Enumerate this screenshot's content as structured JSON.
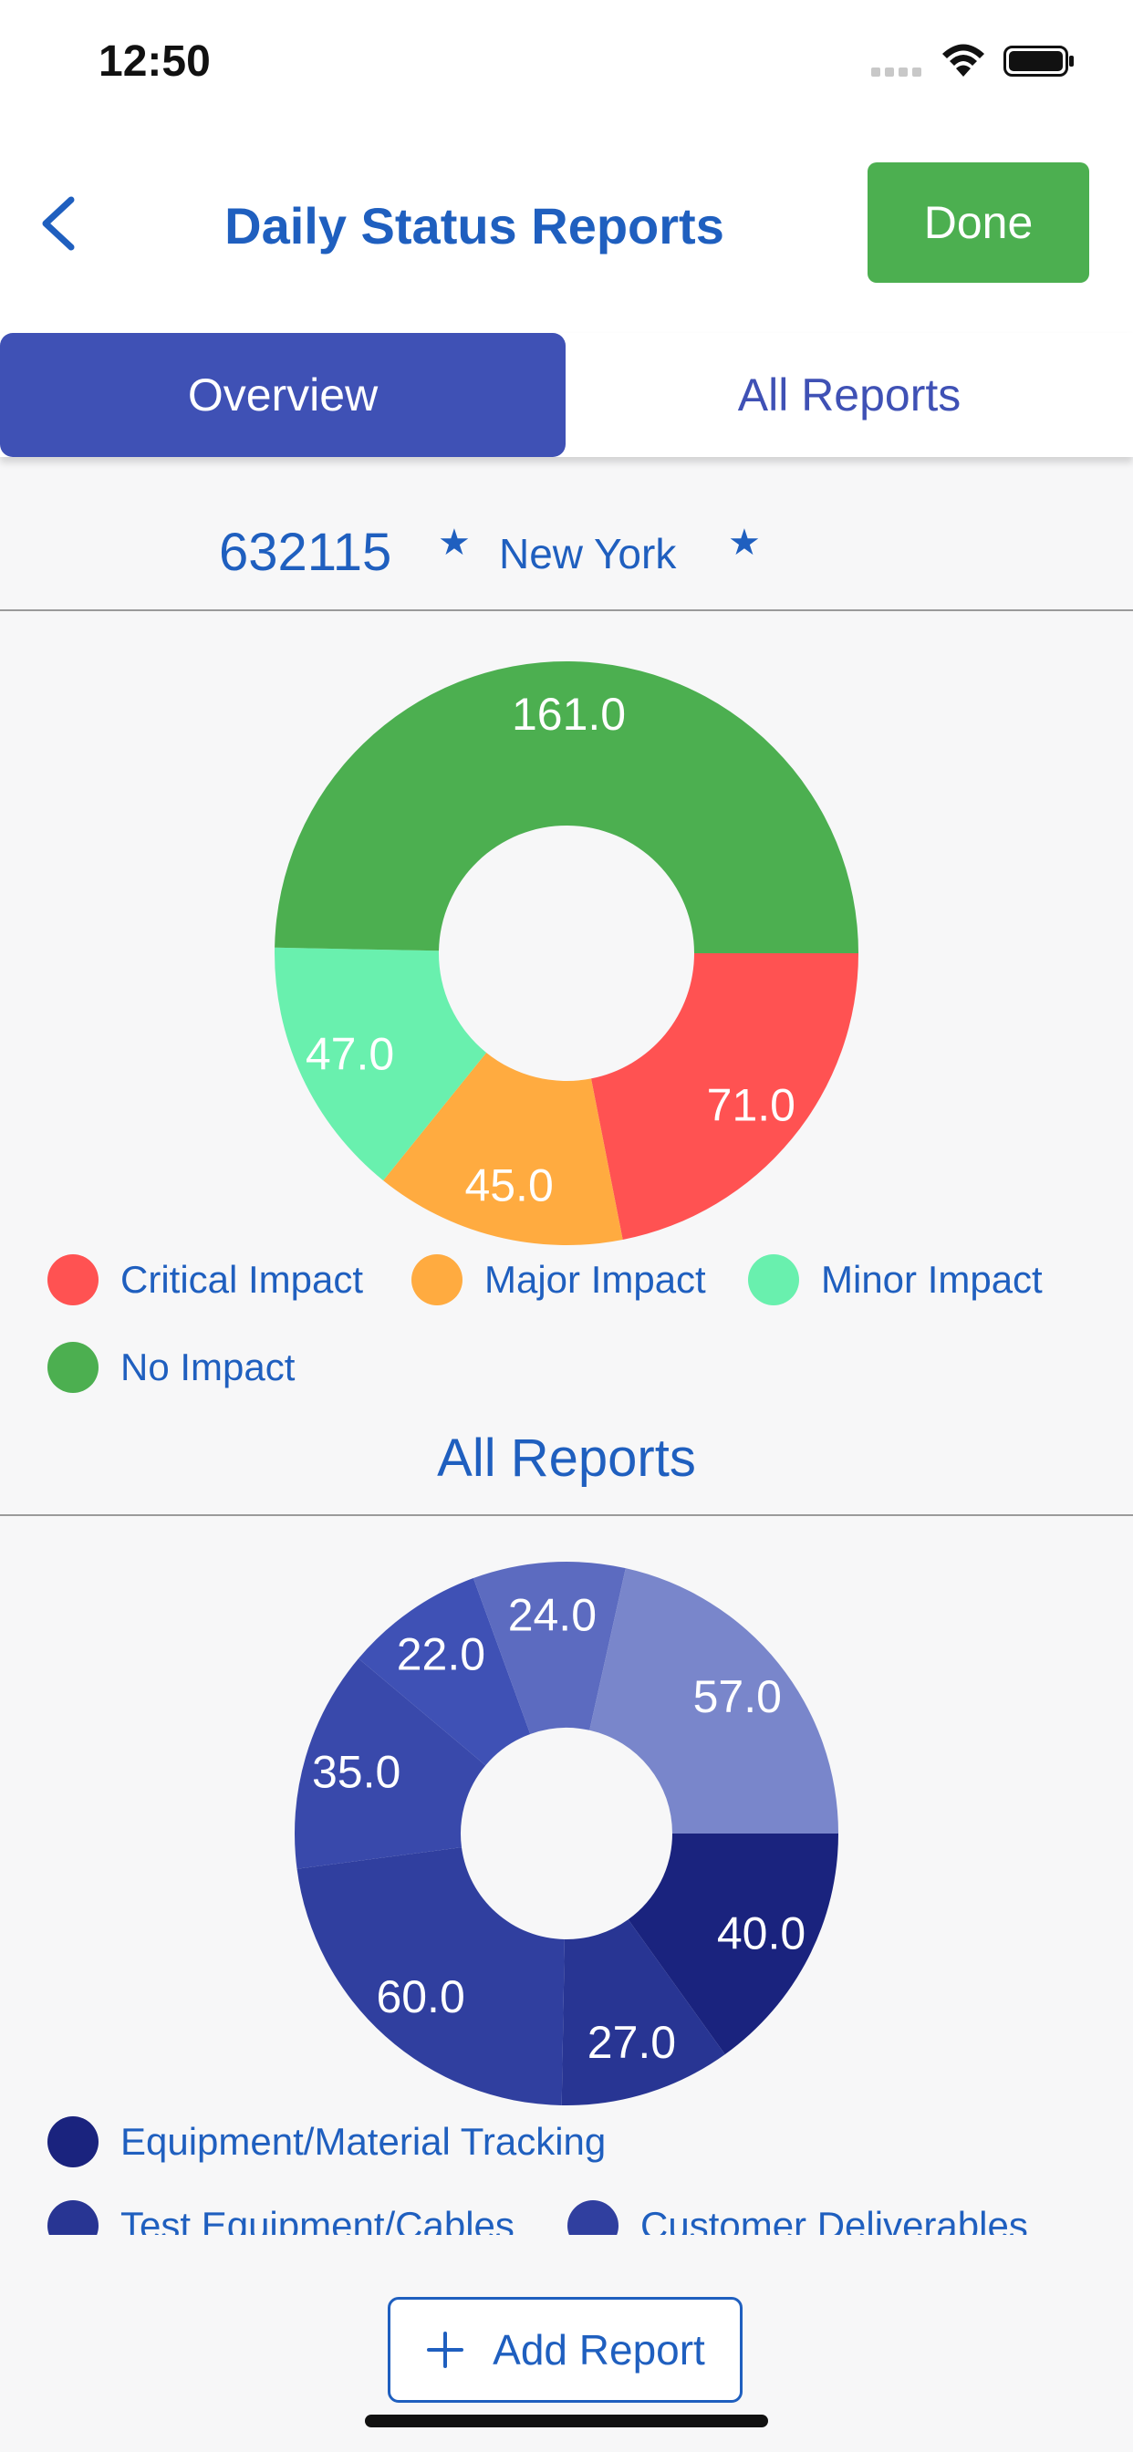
{
  "status_bar": {
    "time": "12:50"
  },
  "nav": {
    "title": "Daily Status Reports",
    "done_label": "Done"
  },
  "tabs": [
    {
      "label": "Overview",
      "active": true
    },
    {
      "label": "All Reports",
      "active": false
    }
  ],
  "site": {
    "id": "632115",
    "city": "New York",
    "star": "★"
  },
  "section_title": "All Reports",
  "add_report_label": "Add Report",
  "colors": {
    "primary": "#3f51b5",
    "text_blue": "#1f5fbf",
    "done_green": "#4caf50"
  },
  "chart_data": [
    {
      "type": "pie",
      "donut": true,
      "series": [
        {
          "label": "Critical Impact",
          "value": 71.0,
          "color": "#ff5252"
        },
        {
          "label": "Major Impact",
          "value": 45.0,
          "color": "#ffab40"
        },
        {
          "label": "Minor Impact",
          "value": 47.0,
          "color": "#69f0ae"
        },
        {
          "label": "No Impact",
          "value": 161.0,
          "color": "#4caf50"
        }
      ],
      "legend": [
        {
          "label": "Critical Impact",
          "color": "#ff5252"
        },
        {
          "label": "Major Impact",
          "color": "#ffab40"
        },
        {
          "label": "Minor Impact",
          "color": "#69f0ae"
        },
        {
          "label": "No Impact",
          "color": "#4caf50"
        }
      ],
      "legend_position": "bottom"
    },
    {
      "type": "pie",
      "donut": true,
      "series": [
        {
          "value": 40.0,
          "color": "#1a237e"
        },
        {
          "value": 27.0,
          "color": "#283593"
        },
        {
          "value": 60.0,
          "color": "#303f9f"
        },
        {
          "value": 35.0,
          "color": "#3949ab"
        },
        {
          "value": 22.0,
          "color": "#3f51b5"
        },
        {
          "value": 24.0,
          "color": "#5c6bc0"
        },
        {
          "value": 57.0,
          "color": "#7986cb"
        }
      ],
      "legend": [
        {
          "label": "Equipment/Material Tracking",
          "color": "#1a237e"
        },
        {
          "label": "Test Equipment/Cables",
          "color": "#283593"
        },
        {
          "label": "Customer Deliverables",
          "color": "#303f9f"
        }
      ],
      "legend_position": "bottom"
    }
  ]
}
